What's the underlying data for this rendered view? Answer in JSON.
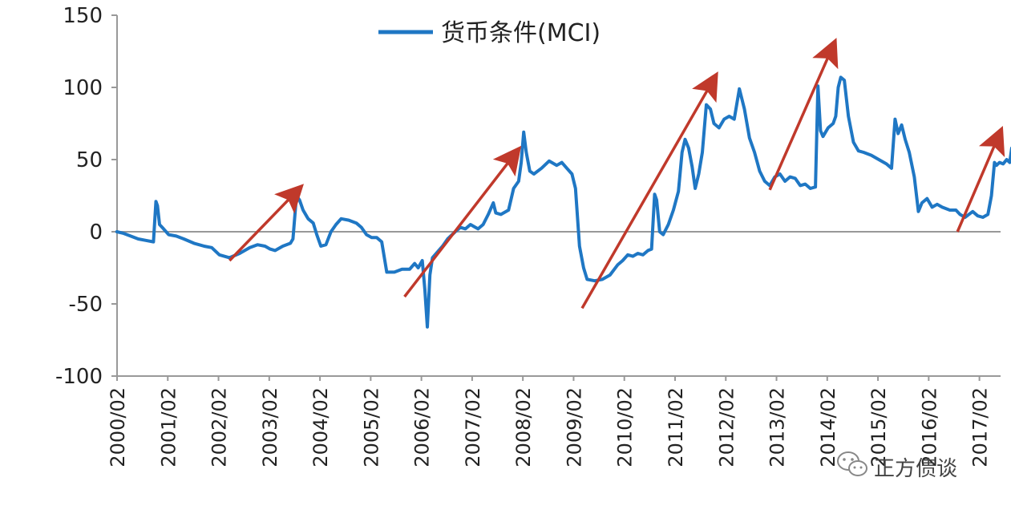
{
  "chart_data": {
    "type": "line",
    "title": "",
    "xlabel": "",
    "ylabel": "",
    "ylim": [
      -100,
      150
    ],
    "yticks": [
      -100,
      -50,
      0,
      50,
      100,
      150
    ],
    "xlim": [
      2000.083,
      2017.5
    ],
    "x_tick_labels": [
      "2000/02",
      "2001/02",
      "2002/02",
      "2003/02",
      "2004/02",
      "2005/02",
      "2006/02",
      "2007/02",
      "2008/02",
      "2009/02",
      "2010/02",
      "2011/02",
      "2012/02",
      "2013/02",
      "2014/02",
      "2015/02",
      "2016/02",
      "2017/02"
    ],
    "grid": false,
    "legend": "top-center",
    "series": [
      {
        "name": "货币条件(MCI)",
        "color": "#1f77c4",
        "points": [
          [
            2000.08,
            0
          ],
          [
            2000.2,
            -1
          ],
          [
            2000.35,
            -3
          ],
          [
            2000.5,
            -5
          ],
          [
            2000.65,
            -6
          ],
          [
            2000.8,
            -7
          ],
          [
            2000.85,
            21
          ],
          [
            2000.88,
            18
          ],
          [
            2000.92,
            5
          ],
          [
            2001.0,
            2
          ],
          [
            2001.1,
            -2
          ],
          [
            2001.25,
            -3
          ],
          [
            2001.4,
            -5
          ],
          [
            2001.6,
            -8
          ],
          [
            2001.8,
            -10
          ],
          [
            2001.95,
            -11
          ],
          [
            2002.1,
            -16
          ],
          [
            2002.3,
            -18
          ],
          [
            2002.5,
            -15
          ],
          [
            2002.7,
            -11
          ],
          [
            2002.85,
            -9
          ],
          [
            2003.0,
            -10
          ],
          [
            2003.1,
            -12
          ],
          [
            2003.2,
            -13
          ],
          [
            2003.35,
            -10
          ],
          [
            2003.5,
            -8
          ],
          [
            2003.55,
            -5
          ],
          [
            2003.62,
            25
          ],
          [
            2003.68,
            22
          ],
          [
            2003.75,
            15
          ],
          [
            2003.85,
            9
          ],
          [
            2003.95,
            6
          ],
          [
            2004.02,
            -2
          ],
          [
            2004.1,
            -10
          ],
          [
            2004.2,
            -9
          ],
          [
            2004.3,
            0
          ],
          [
            2004.4,
            5
          ],
          [
            2004.5,
            9
          ],
          [
            2004.65,
            8
          ],
          [
            2004.8,
            6
          ],
          [
            2004.9,
            3
          ],
          [
            2005.0,
            -2
          ],
          [
            2005.1,
            -4
          ],
          [
            2005.2,
            -4
          ],
          [
            2005.3,
            -7
          ],
          [
            2005.4,
            -28
          ],
          [
            2005.55,
            -28
          ],
          [
            2005.7,
            -26
          ],
          [
            2005.85,
            -26
          ],
          [
            2005.95,
            -22
          ],
          [
            2006.02,
            -25
          ],
          [
            2006.1,
            -20
          ],
          [
            2006.15,
            -40
          ],
          [
            2006.2,
            -66
          ],
          [
            2006.25,
            -30
          ],
          [
            2006.3,
            -18
          ],
          [
            2006.4,
            -14
          ],
          [
            2006.5,
            -10
          ],
          [
            2006.6,
            -5
          ],
          [
            2006.75,
            0
          ],
          [
            2006.85,
            3
          ],
          [
            2006.95,
            2
          ],
          [
            2007.05,
            5
          ],
          [
            2007.15,
            3
          ],
          [
            2007.2,
            2
          ],
          [
            2007.3,
            5
          ],
          [
            2007.4,
            12
          ],
          [
            2007.5,
            20
          ],
          [
            2007.55,
            13
          ],
          [
            2007.65,
            12
          ],
          [
            2007.8,
            15
          ],
          [
            2007.9,
            30
          ],
          [
            2008.0,
            35
          ],
          [
            2008.05,
            48
          ],
          [
            2008.1,
            69
          ],
          [
            2008.15,
            55
          ],
          [
            2008.22,
            42
          ],
          [
            2008.3,
            40
          ],
          [
            2008.45,
            44
          ],
          [
            2008.6,
            49
          ],
          [
            2008.75,
            46
          ],
          [
            2008.85,
            48
          ],
          [
            2008.95,
            44
          ],
          [
            2009.05,
            40
          ],
          [
            2009.12,
            30
          ],
          [
            2009.2,
            -10
          ],
          [
            2009.28,
            -25
          ],
          [
            2009.35,
            -33
          ],
          [
            2009.5,
            -34
          ],
          [
            2009.65,
            -33
          ],
          [
            2009.8,
            -30
          ],
          [
            2009.95,
            -23
          ],
          [
            2010.05,
            -20
          ],
          [
            2010.15,
            -16
          ],
          [
            2010.25,
            -17
          ],
          [
            2010.35,
            -15
          ],
          [
            2010.45,
            -16
          ],
          [
            2010.55,
            -13
          ],
          [
            2010.62,
            -12
          ],
          [
            2010.68,
            26
          ],
          [
            2010.72,
            22
          ],
          [
            2010.78,
            0
          ],
          [
            2010.85,
            -2
          ],
          [
            2010.95,
            5
          ],
          [
            2011.05,
            15
          ],
          [
            2011.15,
            28
          ],
          [
            2011.22,
            55
          ],
          [
            2011.28,
            64
          ],
          [
            2011.35,
            58
          ],
          [
            2011.42,
            45
          ],
          [
            2011.48,
            30
          ],
          [
            2011.55,
            40
          ],
          [
            2011.62,
            55
          ],
          [
            2011.7,
            88
          ],
          [
            2011.78,
            85
          ],
          [
            2011.85,
            75
          ],
          [
            2011.95,
            72
          ],
          [
            2012.05,
            78
          ],
          [
            2012.15,
            80
          ],
          [
            2012.25,
            78
          ],
          [
            2012.35,
            99
          ],
          [
            2012.45,
            85
          ],
          [
            2012.55,
            65
          ],
          [
            2012.65,
            55
          ],
          [
            2012.75,
            42
          ],
          [
            2012.85,
            35
          ],
          [
            2012.95,
            32
          ],
          [
            2013.05,
            38
          ],
          [
            2013.15,
            40
          ],
          [
            2013.25,
            35
          ],
          [
            2013.35,
            38
          ],
          [
            2013.45,
            37
          ],
          [
            2013.55,
            32
          ],
          [
            2013.65,
            33
          ],
          [
            2013.75,
            30
          ],
          [
            2013.85,
            31
          ],
          [
            2013.9,
            101
          ],
          [
            2013.95,
            70
          ],
          [
            2014.0,
            66
          ],
          [
            2014.1,
            72
          ],
          [
            2014.2,
            75
          ],
          [
            2014.25,
            80
          ],
          [
            2014.3,
            100
          ],
          [
            2014.35,
            107
          ],
          [
            2014.42,
            105
          ],
          [
            2014.5,
            80
          ],
          [
            2014.6,
            62
          ],
          [
            2014.7,
            56
          ],
          [
            2014.8,
            55
          ],
          [
            2014.95,
            53
          ],
          [
            2015.1,
            50
          ],
          [
            2015.25,
            47
          ],
          [
            2015.35,
            44
          ],
          [
            2015.42,
            78
          ],
          [
            2015.48,
            68
          ],
          [
            2015.55,
            74
          ],
          [
            2015.62,
            64
          ],
          [
            2015.7,
            55
          ],
          [
            2015.8,
            38
          ],
          [
            2015.88,
            14
          ],
          [
            2015.95,
            20
          ],
          [
            2016.05,
            23
          ],
          [
            2016.15,
            17
          ],
          [
            2016.25,
            19
          ],
          [
            2016.35,
            17
          ],
          [
            2016.5,
            15
          ],
          [
            2016.62,
            15
          ],
          [
            2016.7,
            12
          ],
          [
            2016.8,
            10
          ],
          [
            2016.95,
            14
          ],
          [
            2017.05,
            11
          ],
          [
            2017.15,
            10
          ],
          [
            2017.25,
            12
          ],
          [
            2017.32,
            25
          ],
          [
            2017.38,
            48
          ],
          [
            2017.42,
            46
          ],
          [
            2017.48,
            48
          ],
          [
            2017.55,
            47
          ],
          [
            2017.62,
            50
          ],
          [
            2017.68,
            48
          ],
          [
            2017.72,
            58
          ]
        ]
      }
    ],
    "annotations": {
      "arrow_color": "#c0392b",
      "arrows": [
        {
          "from": [
            2002.3,
            -20
          ],
          "to": [
            2003.65,
            29
          ]
        },
        {
          "from": [
            2005.75,
            -45
          ],
          "to": [
            2007.95,
            55
          ]
        },
        {
          "from": [
            2009.25,
            -53
          ],
          "to": [
            2011.85,
            106
          ]
        },
        {
          "from": [
            2012.95,
            29
          ],
          "to": [
            2014.2,
            129
          ]
        },
        {
          "from": [
            2016.65,
            0
          ],
          "to": [
            2017.48,
            68
          ]
        }
      ]
    }
  },
  "watermark": {
    "text": "正方债谈",
    "icon": "wechat-icon"
  }
}
